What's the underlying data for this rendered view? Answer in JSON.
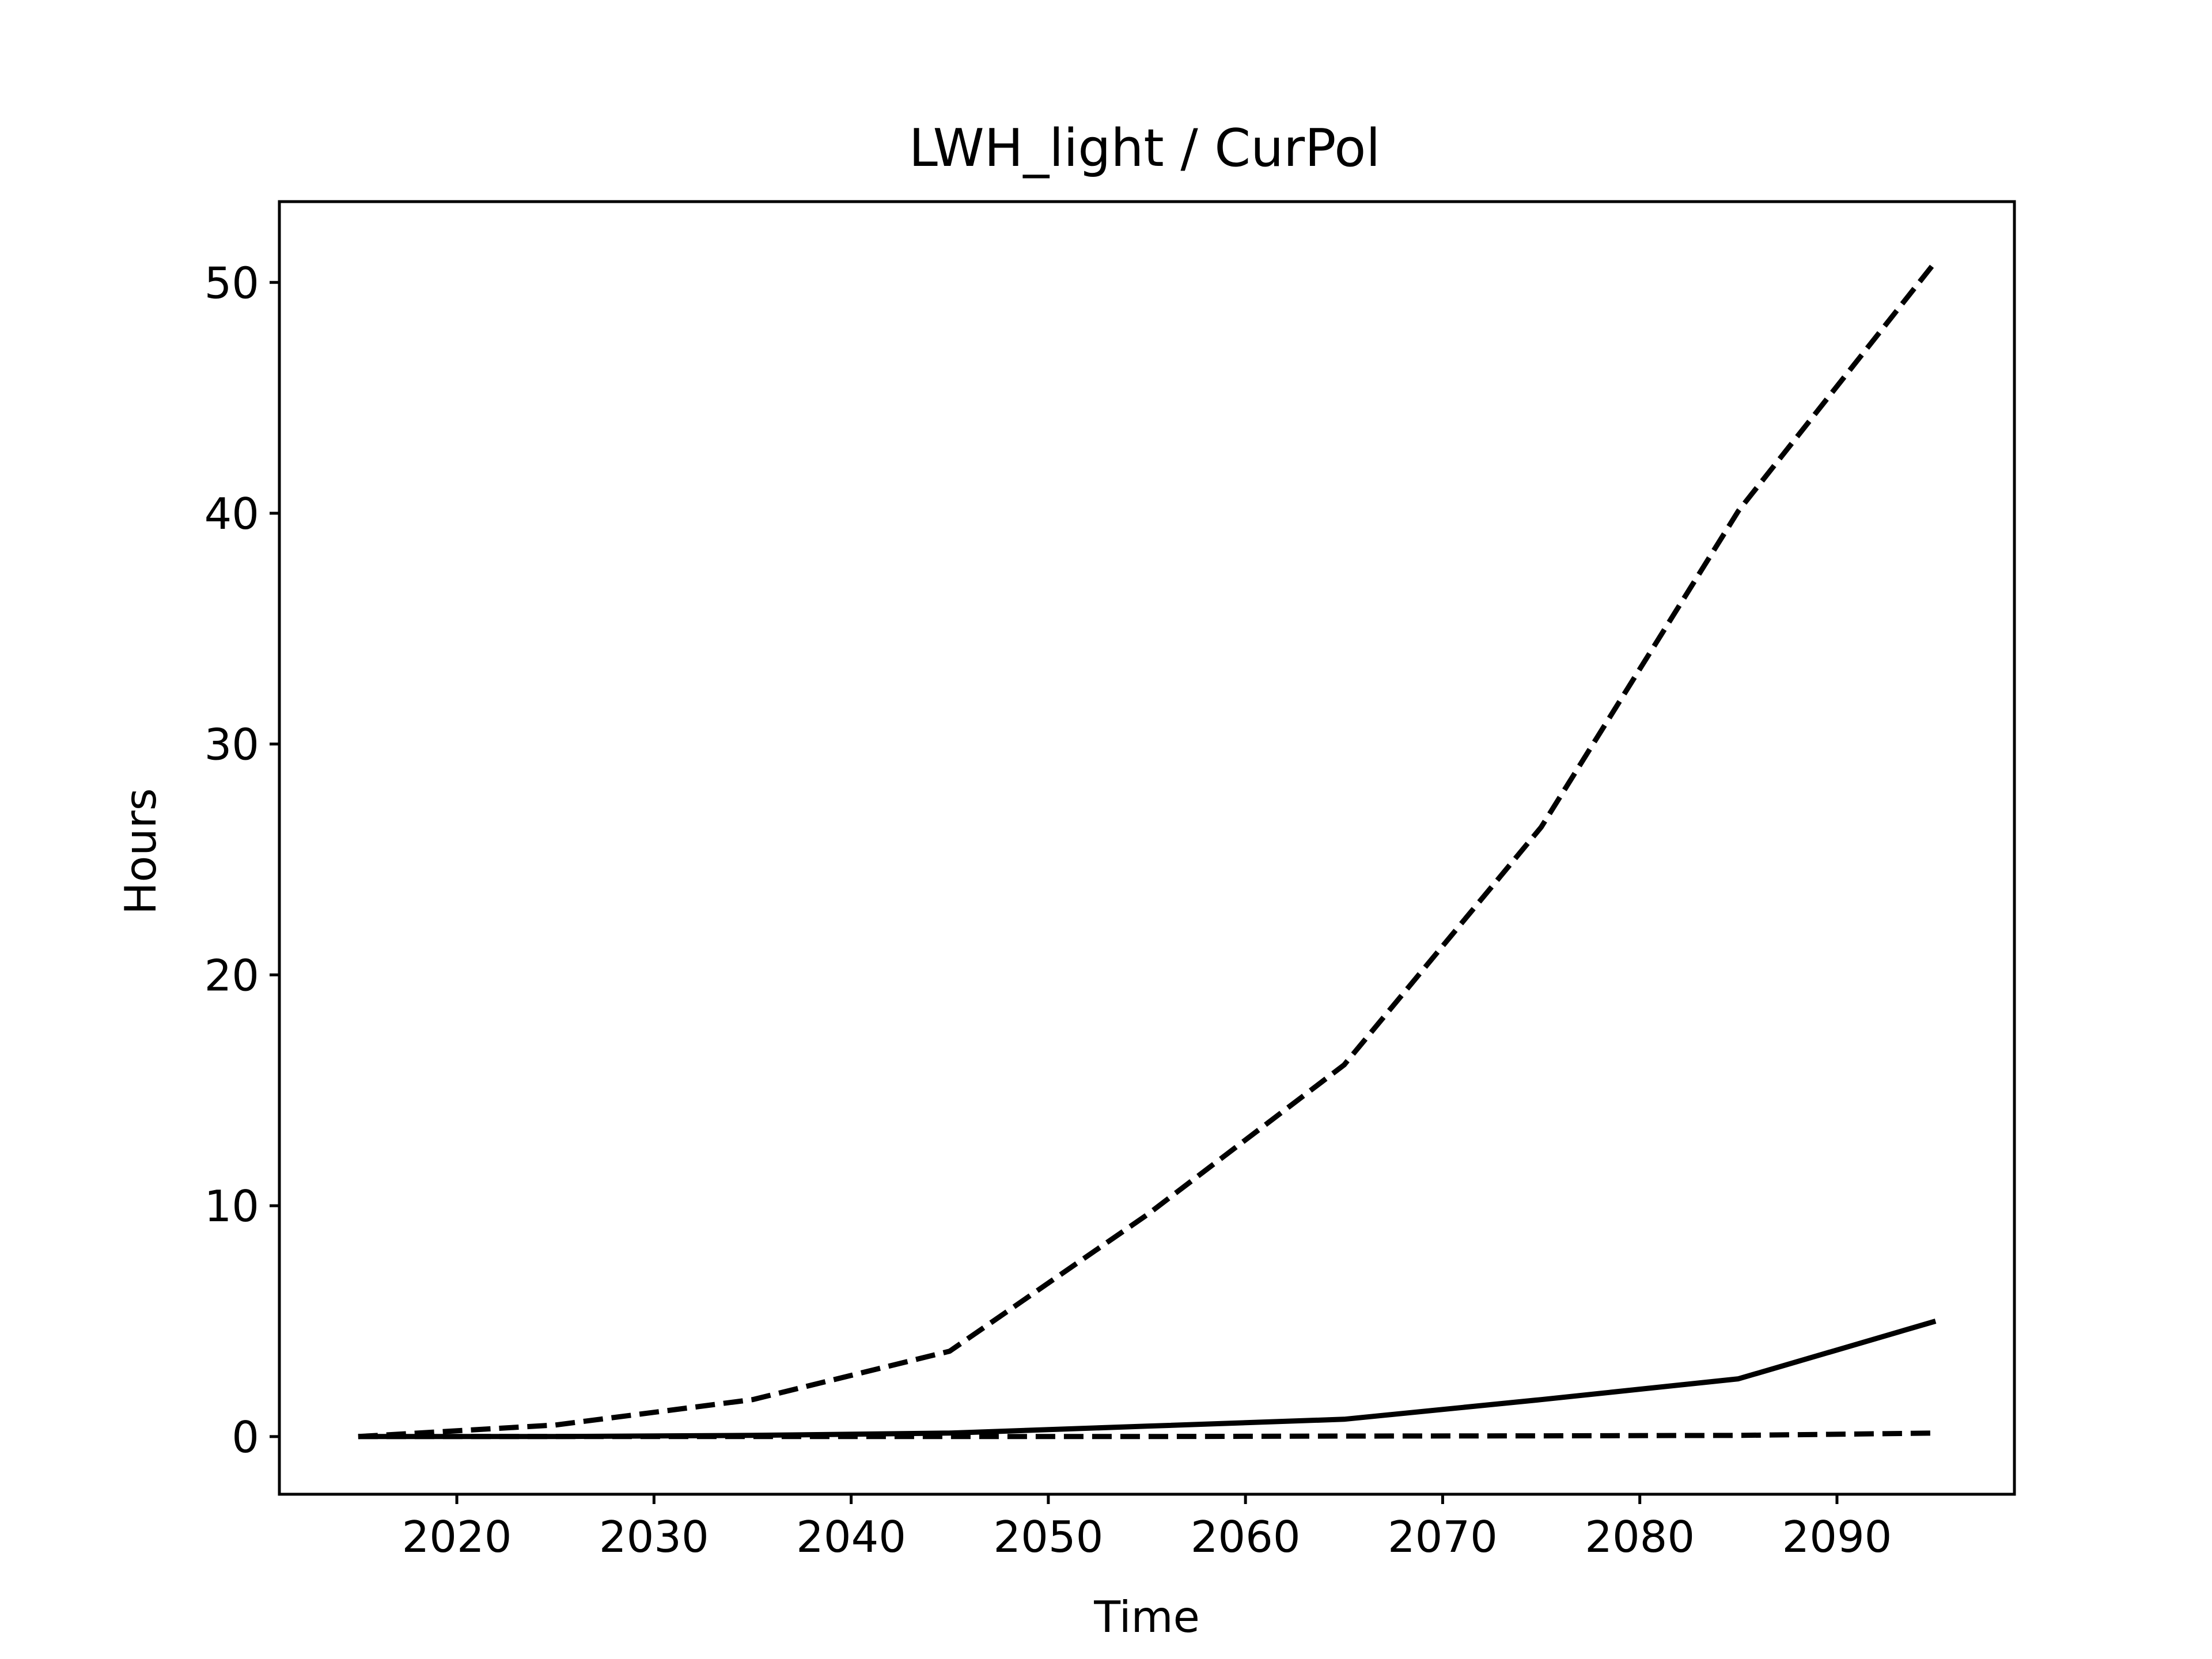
{
  "chart_data": {
    "type": "line",
    "title": "LWH_light / CurPol",
    "xlabel": "Time",
    "ylabel": "Hours",
    "xlim": [
      2011,
      2099
    ],
    "ylim": [
      -2.5,
      53.5
    ],
    "xticks": [
      2020,
      2030,
      2040,
      2050,
      2060,
      2070,
      2080,
      2090
    ],
    "yticks": [
      0,
      10,
      20,
      30,
      40,
      50
    ],
    "grid": false,
    "x": [
      2015,
      2025,
      2035,
      2045,
      2055,
      2065,
      2075,
      2085,
      2095
    ],
    "series": [
      {
        "style": "dashed",
        "color": "#000000",
        "values": [
          0.0,
          0.5,
          1.6,
          3.7,
          9.6,
          16.1,
          26.4,
          40.1,
          50.9
        ]
      },
      {
        "style": "solid",
        "color": "#000000",
        "values": [
          0.0,
          0.0,
          0.05,
          0.15,
          0.45,
          0.75,
          1.6,
          2.5,
          5.0
        ]
      },
      {
        "style": "dashed",
        "color": "#000000",
        "values": [
          0.0,
          0.0,
          0.0,
          0.0,
          0.0,
          0.02,
          0.03,
          0.05,
          0.15
        ]
      }
    ]
  }
}
